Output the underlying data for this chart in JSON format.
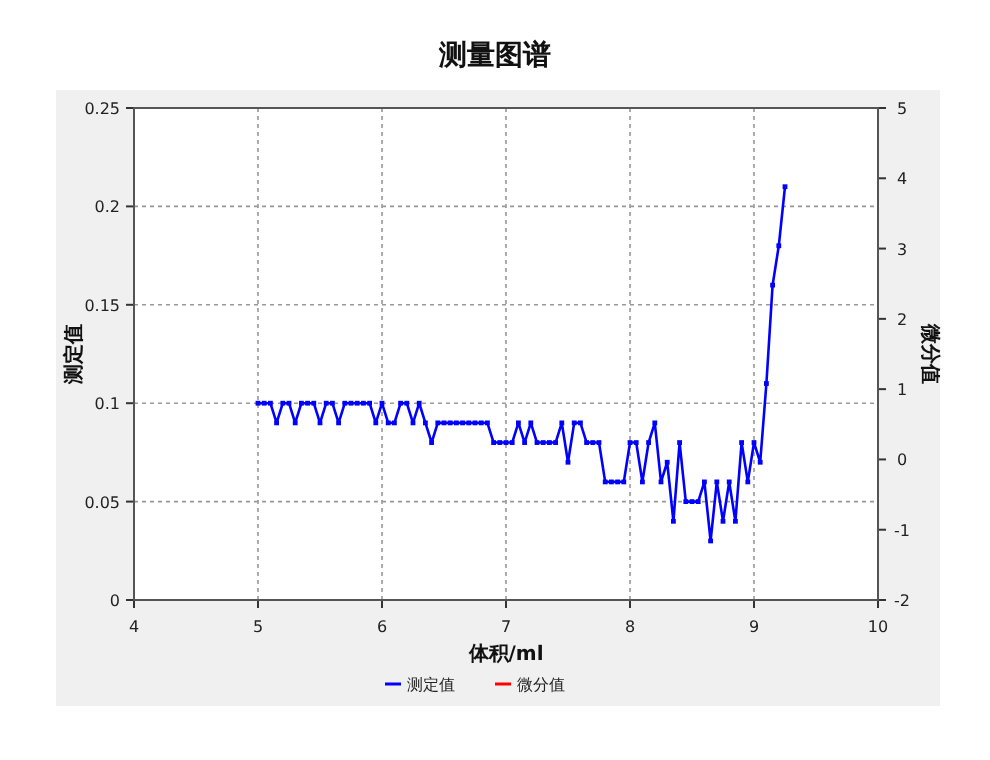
{
  "chart_data": {
    "type": "line",
    "title": "测量图谱",
    "xlabel": "体积/ml",
    "ylabel": "测定值",
    "y2label": "微分值",
    "x": [
      5,
      5.05,
      5.1,
      5.15,
      5.2,
      5.25,
      5.3,
      5.35,
      5.4,
      5.45,
      5.5,
      5.55,
      5.6,
      5.65,
      5.7,
      5.75,
      5.8,
      5.85,
      5.9,
      5.95,
      6,
      6.05,
      6.1,
      6.15,
      6.2,
      6.25,
      6.3,
      6.35,
      6.4,
      6.45,
      6.5,
      6.55,
      6.6,
      6.65,
      6.7,
      6.75,
      6.8,
      6.85,
      6.9,
      6.95,
      7,
      7.05,
      7.1,
      7.15,
      7.2,
      7.25,
      7.3,
      7.35,
      7.4,
      7.45,
      7.5,
      7.55,
      7.6,
      7.65,
      7.7,
      7.75,
      7.8,
      7.85,
      7.9,
      7.95,
      8,
      8.05,
      8.1,
      8.15,
      8.2,
      8.25,
      8.3,
      8.35,
      8.4,
      8.45,
      8.5,
      8.55,
      8.6,
      8.65,
      8.7,
      8.75,
      8.8,
      8.85,
      8.9,
      8.95,
      9,
      9.05,
      9.1,
      9.15,
      9.2,
      9.25
    ],
    "series": [
      {
        "name": "测定值",
        "color": "#0000ff",
        "values": [
          0.1,
          0.1,
          0.1,
          0.09,
          0.1,
          0.1,
          0.09,
          0.1,
          0.1,
          0.1,
          0.09,
          0.1,
          0.1,
          0.09,
          0.1,
          0.1,
          0.1,
          0.1,
          0.1,
          0.09,
          0.1,
          0.09,
          0.09,
          0.1,
          0.1,
          0.09,
          0.1,
          0.09,
          0.08,
          0.09,
          0.09,
          0.09,
          0.09,
          0.09,
          0.09,
          0.09,
          0.09,
          0.09,
          0.08,
          0.08,
          0.08,
          0.08,
          0.09,
          0.08,
          0.09,
          0.08,
          0.08,
          0.08,
          0.08,
          0.09,
          0.07,
          0.09,
          0.09,
          0.08,
          0.08,
          0.08,
          0.06,
          0.06,
          0.06,
          0.06,
          0.08,
          0.08,
          0.06,
          0.08,
          0.09,
          0.06,
          0.07,
          0.04,
          0.08,
          0.05,
          0.05,
          0.05,
          0.06,
          0.03,
          0.06,
          0.04,
          0.06,
          0.04,
          0.08,
          0.06,
          0.08,
          0.07,
          0.11,
          0.16,
          0.18,
          0.21
        ]
      },
      {
        "name": "微分值",
        "color": "#ff0000",
        "values": [
          null,
          null,
          null,
          null,
          null,
          null,
          null,
          null,
          null,
          null,
          null,
          null,
          null,
          null,
          null,
          null,
          null,
          null,
          null,
          null,
          null,
          null,
          null,
          null,
          null,
          null,
          null,
          null,
          null,
          null,
          null,
          null,
          null,
          null,
          null,
          null,
          null,
          null,
          null,
          null,
          null,
          null,
          null,
          null,
          null,
          null,
          null,
          null,
          null,
          null,
          null,
          null,
          null,
          null,
          null,
          null,
          null,
          null,
          null,
          null,
          null,
          null,
          null,
          null,
          null,
          null,
          null,
          null,
          null,
          null,
          null,
          null,
          null,
          null,
          null,
          null,
          null,
          null,
          null,
          null,
          null,
          null,
          null,
          null,
          null,
          null
        ]
      }
    ],
    "xlim": [
      4,
      10
    ],
    "xticks": [
      4,
      5,
      6,
      7,
      8,
      9,
      10
    ],
    "ylim": [
      0,
      0.25
    ],
    "yticks": [
      0,
      0.05,
      0.1,
      0.15,
      0.2,
      0.25
    ],
    "y2lim": [
      -2,
      5
    ],
    "y2ticks": [
      -2,
      -1,
      0,
      1,
      2,
      3,
      4,
      5
    ],
    "grid": true,
    "legend": "bottom",
    "marker": "square",
    "line_style": "solid"
  }
}
